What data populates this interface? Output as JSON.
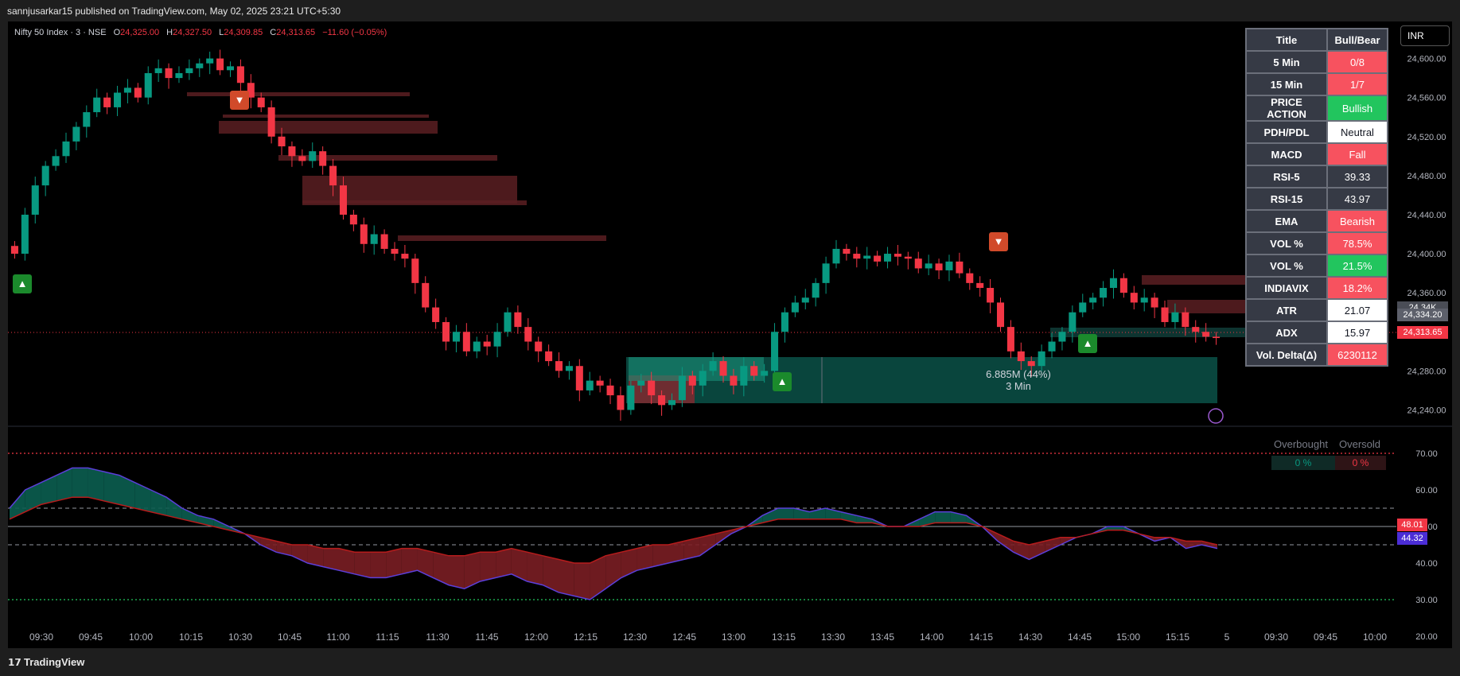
{
  "header": {
    "published_line": "sannjusarkar15 published on TradingView.com, May 02, 2025 23:21 UTC+5:30"
  },
  "legend": {
    "symbol": "Nifty 50 Index · 3 · NSE",
    "open_label": "O",
    "open": "24,325.00",
    "high_label": "H",
    "high": "24,327.50",
    "low_label": "L",
    "low": "24,309.85",
    "close_label": "C",
    "close": "24,313.65",
    "change": "−11.60 (−0.05%)"
  },
  "currency": "INR",
  "dashboard": {
    "header": {
      "title": "Title",
      "value": "Bull/Bear"
    },
    "rows": [
      {
        "title": "5 Min",
        "value": "0/8",
        "bg": "#f7525f",
        "fg": "#ffffff"
      },
      {
        "title": "15 Min",
        "value": "1/7",
        "bg": "#f7525f",
        "fg": "#ffffff"
      },
      {
        "title": "PRICE ACTION",
        "value": "Bullish",
        "bg": "#22c55e",
        "fg": "#ffffff"
      },
      {
        "title": "PDH/PDL",
        "value": "Neutral",
        "bg": "#ffffff",
        "fg": "#131722"
      },
      {
        "title": "MACD",
        "value": "Fall",
        "bg": "#f7525f",
        "fg": "#ffffff"
      },
      {
        "title": "RSI-5",
        "value": "39.33",
        "bg": "#363a45",
        "fg": "#ffffff"
      },
      {
        "title": "RSI-15",
        "value": "43.97",
        "bg": "#363a45",
        "fg": "#ffffff"
      },
      {
        "title": "EMA",
        "value": "Bearish",
        "bg": "#f7525f",
        "fg": "#ffffff"
      },
      {
        "title": "VOL %",
        "value": "78.5%",
        "bg": "#f7525f",
        "fg": "#ffffff"
      },
      {
        "title": "VOL %",
        "value": "21.5%",
        "bg": "#22c55e",
        "fg": "#ffffff"
      },
      {
        "title": "INDIAVIX",
        "value": "18.2%",
        "bg": "#f7525f",
        "fg": "#ffffff"
      },
      {
        "title": "ATR",
        "value": "21.07",
        "bg": "#ffffff",
        "fg": "#131722"
      },
      {
        "title": "ADX",
        "value": "15.97",
        "bg": "#ffffff",
        "fg": "#131722"
      },
      {
        "title": "Vol. Delta(Δ)",
        "value": "6230112",
        "bg": "#f7525f",
        "fg": "#ffffff"
      }
    ]
  },
  "volume_profile": {
    "volume": "6.885M (44%)",
    "timeframe": "3 Min"
  },
  "price_tags": {
    "ask": "24,334.20",
    "vol": "24.34K",
    "last": "24,313.65"
  },
  "rsi_panel": {
    "overbought_label": "Overbought",
    "oversold_label": "Oversold",
    "overbought_value": "0 %",
    "oversold_value": "0 %",
    "tag_1": "48.01",
    "tag_2": "44.32"
  },
  "footer": {
    "brand": "TradingView"
  },
  "colors": {
    "up": "#089981",
    "down": "#f23645",
    "zone": "#5a1e22",
    "profile": "#0a4d44"
  },
  "chart_data": [
    {
      "type": "candlestick",
      "title": "Nifty 50 Index · 3 · NSE",
      "xlabel": "",
      "ylabel": "",
      "ylim": [
        24220,
        24620
      ],
      "y_ticks": [
        "24,600.00",
        "24,560.00",
        "24,520.00",
        "24,480.00",
        "24,440.00",
        "24,400.00",
        "24,360.00",
        "24,320.00",
        "24,280.00",
        "24,240.00"
      ],
      "x_ticks": [
        "09:30",
        "09:45",
        "10:00",
        "10:15",
        "10:30",
        "10:45",
        "11:00",
        "11:15",
        "11:30",
        "11:45",
        "12:00",
        "12:15",
        "12:30",
        "12:45",
        "13:00",
        "13:15",
        "13:30",
        "13:45",
        "14:00",
        "14:15",
        "14:30",
        "14:45",
        "15:00",
        "15:15",
        "5",
        "09:30",
        "09:45",
        "10:00"
      ],
      "close": [
        24400,
        24440,
        24470,
        24490,
        24500,
        24515,
        24530,
        24545,
        24560,
        24550,
        24565,
        24570,
        24560,
        24585,
        24590,
        24580,
        24585,
        24590,
        24595,
        24600,
        24588,
        24592,
        24575,
        24560,
        24550,
        24520,
        24510,
        24500,
        24495,
        24505,
        24490,
        24470,
        24440,
        24430,
        24410,
        24420,
        24405,
        24400,
        24395,
        24370,
        24345,
        24330,
        24310,
        24320,
        24300,
        24310,
        24305,
        24320,
        24340,
        24325,
        24310,
        24300,
        24290,
        24280,
        24285,
        24260,
        24270,
        24265,
        24255,
        24240,
        24265,
        24270,
        24255,
        24245,
        24250,
        24275,
        24265,
        24280,
        24290,
        24275,
        24265,
        24285,
        24275,
        24280,
        24320,
        24340,
        24350,
        24355,
        24370,
        24390,
        24405,
        24400,
        24395,
        24398,
        24392,
        24400,
        24397,
        24395,
        24385,
        24390,
        24383,
        24392,
        24380,
        24370,
        24365,
        24350,
        24325,
        24300,
        24290,
        24285,
        24300,
        24310,
        24320,
        24340,
        24350,
        24355,
        24365,
        24375,
        24360,
        24350,
        24355,
        24345,
        24330,
        24340,
        24325,
        24320,
        24315,
        24313.65
      ],
      "volume_profile": {
        "volume": "6.885M (44%)",
        "timeframe": "3 Min"
      }
    },
    {
      "type": "area",
      "title": "",
      "xlabel": "",
      "ylabel": "",
      "ylim": [
        20,
        70
      ],
      "y_ticks": [
        "70.00",
        "60.00",
        "50.00",
        "40.00",
        "30.00",
        "20.00"
      ],
      "levels": {
        "upper": 70,
        "mid_high": 55,
        "mid_low": 45,
        "lower": 30
      },
      "series": [
        {
          "values": [
            55,
            60,
            62,
            64,
            66,
            66,
            65,
            64,
            62,
            60,
            58,
            55,
            53,
            52,
            50,
            48,
            45,
            43,
            42,
            40,
            39,
            38,
            37,
            36,
            36,
            37,
            38,
            36,
            34,
            33,
            35,
            36,
            37,
            35,
            34,
            32,
            31,
            30,
            33,
            36,
            38,
            39,
            40,
            41,
            42,
            45,
            48,
            50,
            53,
            55,
            55,
            54,
            55,
            54,
            53,
            52,
            50,
            50,
            52,
            54,
            54,
            53,
            50,
            46,
            43,
            41,
            43,
            45,
            47,
            48,
            50,
            50,
            48,
            46,
            47,
            44,
            45,
            44
          ]
        },
        {
          "values": [
            52,
            54,
            56,
            57,
            58,
            58,
            57,
            56,
            55,
            54,
            53,
            52,
            51,
            50,
            49,
            48,
            47,
            46,
            45,
            45,
            44,
            44,
            43,
            43,
            43,
            44,
            44,
            43,
            42,
            42,
            43,
            43,
            44,
            43,
            42,
            41,
            40,
            40,
            42,
            43,
            44,
            45,
            45,
            46,
            47,
            48,
            49,
            50,
            51,
            52,
            52,
            52,
            52,
            52,
            51,
            51,
            50,
            50,
            50,
            51,
            51,
            51,
            50,
            48,
            46,
            45,
            46,
            47,
            47,
            48,
            49,
            49,
            48,
            47,
            47,
            46,
            46,
            45
          ]
        }
      ],
      "last_values": [
        "48.01",
        "44.32"
      ]
    }
  ]
}
